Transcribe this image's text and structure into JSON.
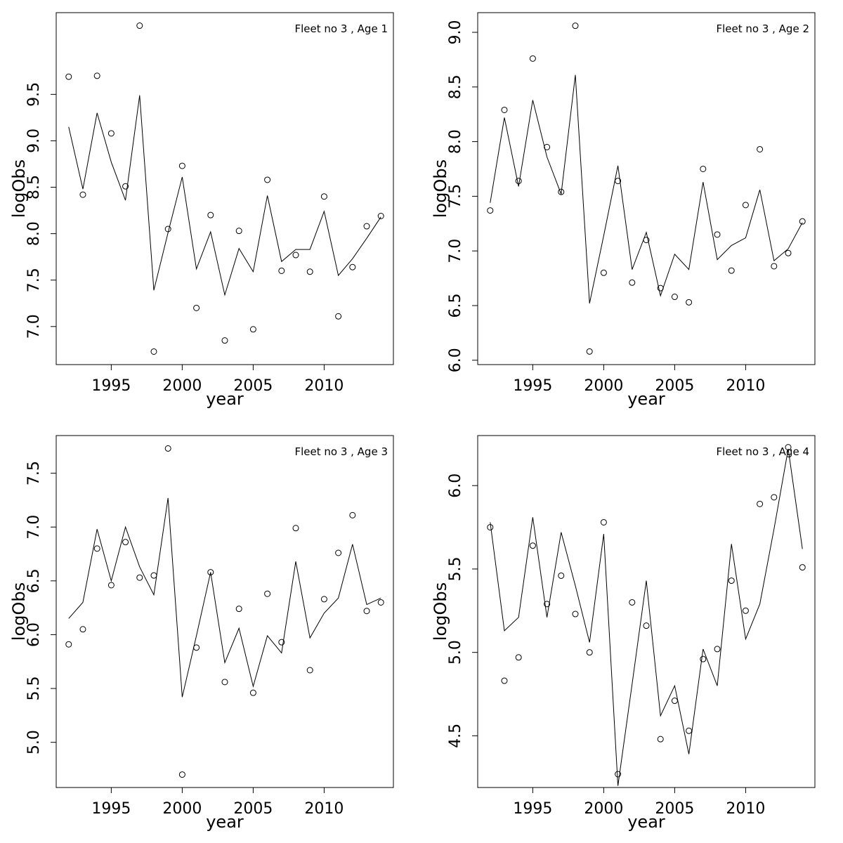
{
  "chart_data": [
    {
      "type": "line",
      "title": "Fleet no 3 , Age 1",
      "xlabel": "year",
      "ylabel": "logObs",
      "x": [
        1992,
        1993,
        1994,
        1995,
        1996,
        1997,
        1998,
        1999,
        2000,
        2001,
        2002,
        2003,
        2004,
        2005,
        2006,
        2007,
        2008,
        2009,
        2010,
        2011,
        2012,
        2013,
        2014
      ],
      "series": [
        {
          "type": "scatter",
          "color": "#000000",
          "values": [
            9.69,
            8.42,
            9.7,
            9.08,
            8.51,
            10.24,
            6.73,
            8.05,
            8.73,
            7.2,
            8.2,
            6.85,
            8.03,
            6.97,
            8.58,
            7.6,
            7.77,
            7.59,
            8.4,
            7.11,
            7.64,
            8.08,
            8.19
          ]
        },
        {
          "type": "line",
          "color": "#000000",
          "values": [
            9.15,
            8.48,
            9.3,
            8.77,
            8.36,
            9.49,
            7.39,
            8.01,
            8.61,
            7.62,
            8.02,
            7.34,
            7.84,
            7.59,
            8.41,
            7.7,
            7.83,
            7.83,
            8.24,
            7.55,
            7.73,
            7.95,
            8.18
          ]
        }
      ],
      "xlim": [
        1991.12,
        2014.88
      ],
      "xticks": [
        1995,
        2000,
        2005,
        2010
      ],
      "ylim": [
        6.59,
        10.38
      ],
      "yticks": [
        {
          "value": 7,
          "label": "7.0"
        },
        7.5,
        {
          "value": 8,
          "label": "8.0"
        },
        8.5,
        {
          "value": 9,
          "label": "9.0"
        },
        9.5
      ]
    },
    {
      "type": "line",
      "title": "Fleet no 3 , Age 2",
      "xlabel": "year",
      "ylabel": "logObs",
      "x": [
        1992,
        1993,
        1994,
        1995,
        1996,
        1997,
        1998,
        1999,
        2000,
        2001,
        2002,
        2003,
        2004,
        2005,
        2006,
        2007,
        2008,
        2009,
        2010,
        2011,
        2012,
        2013,
        2014
      ],
      "series": [
        {
          "type": "scatter",
          "color": "#000000",
          "values": [
            7.37,
            8.29,
            7.64,
            8.76,
            7.95,
            7.54,
            9.06,
            6.08,
            6.8,
            7.64,
            6.71,
            7.1,
            6.66,
            6.58,
            6.53,
            7.75,
            7.15,
            6.82,
            7.42,
            7.93,
            6.86,
            6.98,
            7.27
          ]
        },
        {
          "type": "line",
          "color": "#000000",
          "values": [
            7.44,
            8.22,
            7.59,
            8.38,
            7.86,
            7.52,
            8.61,
            6.52,
            7.14,
            7.78,
            6.83,
            7.17,
            6.59,
            6.97,
            6.83,
            7.63,
            6.92,
            7.05,
            7.12,
            7.56,
            6.91,
            7.02,
            7.26
          ]
        }
      ],
      "xlim": [
        1991.12,
        2014.88
      ],
      "xticks": [
        1995,
        2000,
        2005,
        2010
      ],
      "ylim": [
        5.96,
        9.18
      ],
      "yticks": [
        {
          "value": 6,
          "label": "6.0"
        },
        6.5,
        {
          "value": 7,
          "label": "7.0"
        },
        7.5,
        {
          "value": 8,
          "label": "8.0"
        },
        8.5,
        {
          "value": 9,
          "label": "9.0"
        }
      ]
    },
    {
      "type": "line",
      "title": "Fleet no 3 , Age 3",
      "xlabel": "year",
      "ylabel": "logObs",
      "x": [
        1992,
        1993,
        1994,
        1995,
        1996,
        1997,
        1998,
        1999,
        2000,
        2001,
        2002,
        2003,
        2004,
        2005,
        2006,
        2007,
        2008,
        2009,
        2010,
        2011,
        2012,
        2013,
        2014
      ],
      "series": [
        {
          "type": "scatter",
          "color": "#000000",
          "values": [
            5.91,
            6.05,
            6.8,
            6.46,
            6.86,
            6.53,
            6.55,
            7.73,
            4.7,
            5.88,
            6.58,
            5.56,
            6.24,
            5.46,
            6.38,
            5.93,
            6.99,
            5.67,
            6.33,
            6.76,
            7.11,
            6.22,
            6.3
          ]
        },
        {
          "type": "line",
          "color": "#000000",
          "values": [
            6.15,
            6.3,
            6.98,
            6.5,
            7.0,
            6.63,
            6.37,
            7.27,
            5.42,
            5.99,
            6.58,
            5.74,
            6.06,
            5.52,
            5.99,
            5.83,
            6.68,
            5.97,
            6.2,
            6.34,
            6.84,
            6.28,
            6.34
          ]
        }
      ],
      "xlim": [
        1991.12,
        2014.88
      ],
      "xticks": [
        1995,
        2000,
        2005,
        2010
      ],
      "ylim": [
        4.58,
        7.85
      ],
      "yticks": [
        {
          "value": 5,
          "label": "5.0"
        },
        5.5,
        {
          "value": 6,
          "label": "6.0"
        },
        6.5,
        {
          "value": 7,
          "label": "7.0"
        },
        7.5
      ]
    },
    {
      "type": "line",
      "title": "Fleet no 3 , Age 4",
      "xlabel": "year",
      "ylabel": "logObs",
      "x": [
        1992,
        1993,
        1994,
        1995,
        1996,
        1997,
        1998,
        1999,
        2000,
        2001,
        2002,
        2003,
        2004,
        2005,
        2006,
        2007,
        2008,
        2009,
        2010,
        2011,
        2012,
        2013,
        2014
      ],
      "series": [
        {
          "type": "scatter",
          "color": "#000000",
          "values": [
            5.75,
            4.83,
            4.97,
            5.64,
            5.29,
            5.46,
            5.23,
            5.0,
            5.78,
            4.27,
            5.3,
            5.16,
            4.48,
            4.71,
            4.53,
            4.96,
            5.02,
            5.43,
            5.25,
            5.89,
            5.93,
            6.23,
            5.51
          ]
        },
        {
          "type": "line",
          "color": "#000000",
          "values": [
            5.78,
            5.13,
            5.21,
            5.81,
            5.21,
            5.72,
            5.4,
            5.06,
            5.71,
            4.2,
            4.81,
            5.43,
            4.62,
            4.8,
            4.39,
            5.02,
            4.8,
            5.65,
            5.08,
            5.29,
            5.74,
            6.22,
            5.62
          ]
        }
      ],
      "xlim": [
        1991.12,
        2014.88
      ],
      "xticks": [
        1995,
        2000,
        2005,
        2010
      ],
      "ylim": [
        4.19,
        6.3
      ],
      "yticks": [
        4.5,
        {
          "value": 5,
          "label": "5.0"
        },
        5.5,
        {
          "value": 6,
          "label": "6.0"
        }
      ]
    }
  ]
}
